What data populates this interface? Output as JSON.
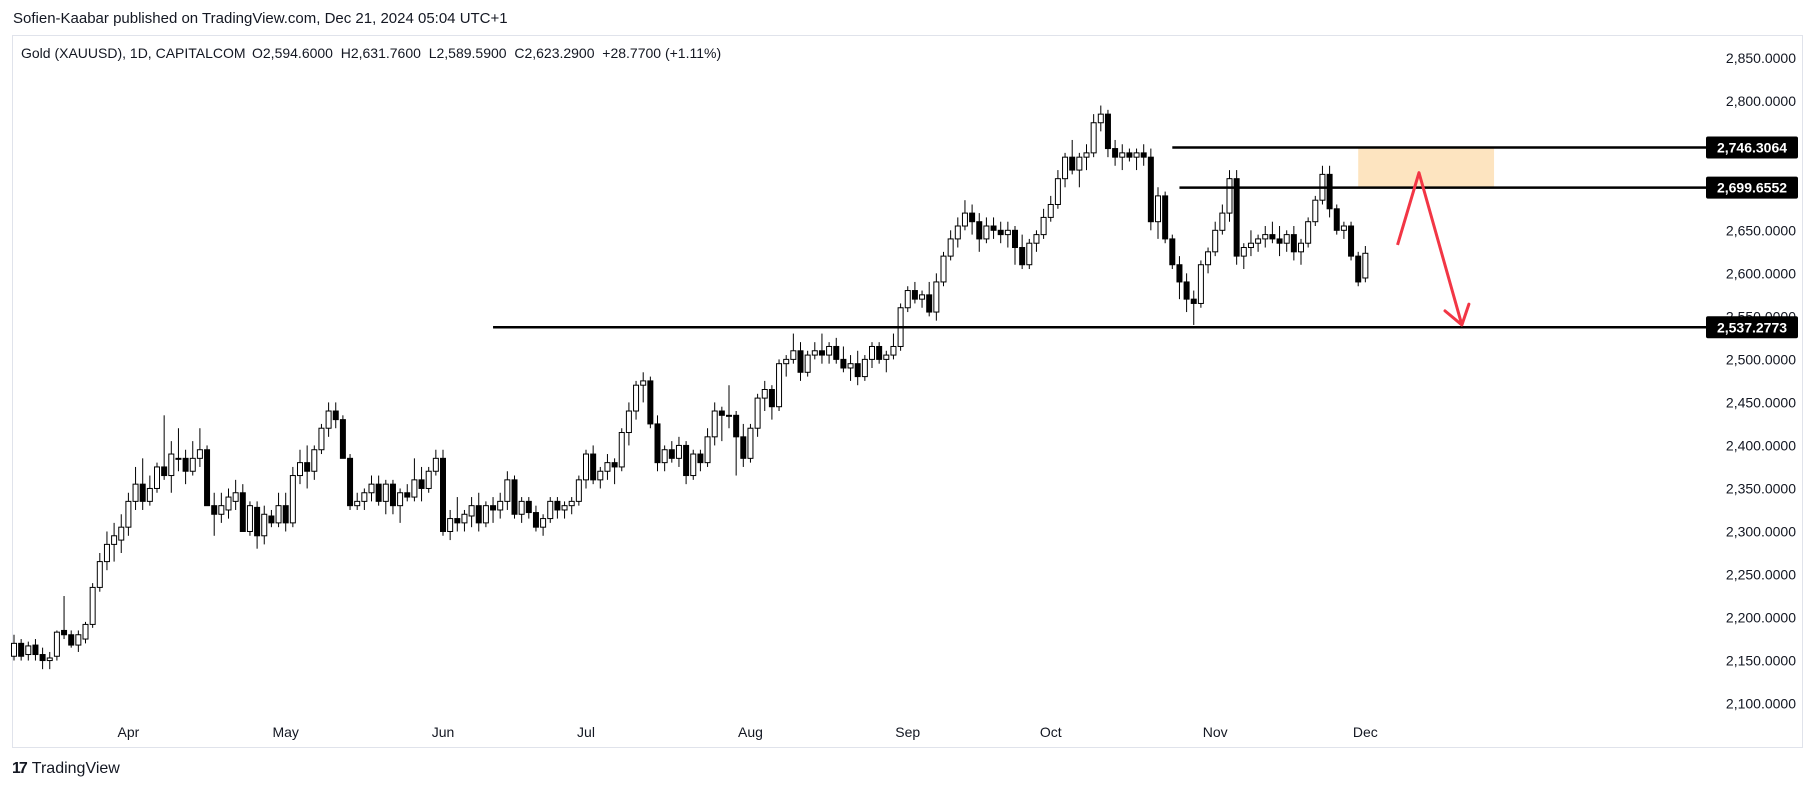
{
  "header": {
    "publisher": "Sofien-Kaabar published on TradingView.com, Dec 21, 2024 05:04 UTC+1"
  },
  "legend": {
    "symbol": "Gold (XAUUSD), 1D, CAPITALCOM",
    "ohlc": "O2,594.6000  H2,631.7600  L2,589.5900  C2,623.2900  +28.7700 (+1.11%)"
  },
  "footer": {
    "brand": "TradingView",
    "logo_glyph": "17"
  },
  "chart_data": {
    "type": "candlestick",
    "title": "Gold (XAUUSD), 1D, CAPITALCOM",
    "ylim": [
      2060,
      2870
    ],
    "y_ticks": [
      2100,
      2150,
      2200,
      2250,
      2300,
      2350,
      2400,
      2450,
      2500,
      2550,
      2600,
      2650,
      2700,
      2750,
      2800,
      2850
    ],
    "y_tick_labels": [
      "2,100.0000",
      "2,150.0000",
      "2,200.0000",
      "2,250.0000",
      "2,300.0000",
      "2,350.0000",
      "2,400.0000",
      "2,450.0000",
      "2,500.0000",
      "2,550.0000",
      "2,600.0000",
      "2,650.0000",
      "2,700.0000",
      "2,750.0000",
      "2,800.0000",
      "2,850.0000"
    ],
    "x_labels": [
      {
        "label": "Apr",
        "index": 16
      },
      {
        "label": "May",
        "index": 38
      },
      {
        "label": "Jun",
        "index": 60
      },
      {
        "label": "Jul",
        "index": 80
      },
      {
        "label": "Aug",
        "index": 103
      },
      {
        "label": "Sep",
        "index": 125
      },
      {
        "label": "Oct",
        "index": 145
      },
      {
        "label": "Nov",
        "index": 168
      },
      {
        "label": "Dec",
        "index": 189
      }
    ],
    "horizontal_lines": [
      {
        "value": 2746.3064,
        "label": "2,746.3064",
        "from_index": 162
      },
      {
        "value": 2699.6552,
        "label": "2,699.6552",
        "from_index": 163
      },
      {
        "value": 2537.2773,
        "label": "2,537.2773",
        "from_index": 67
      }
    ],
    "zone": {
      "from_index": 188,
      "to_index": 207,
      "low": 2700,
      "high": 2747,
      "color": "#fde4c0"
    },
    "arrow_path": [
      [
        193.5,
        2633
      ],
      [
        196.5,
        2717
      ],
      [
        202.5,
        2540
      ]
    ],
    "arrow_color": "#f23645",
    "up_color": "#ffffff",
    "down_color": "#000000",
    "candles": [
      [
        2155,
        2180,
        2150,
        2170
      ],
      [
        2170,
        2175,
        2150,
        2155
      ],
      [
        2157,
        2172,
        2150,
        2167
      ],
      [
        2168,
        2175,
        2150,
        2157
      ],
      [
        2157,
        2165,
        2140,
        2150
      ],
      [
        2150,
        2160,
        2140,
        2153
      ],
      [
        2155,
        2185,
        2150,
        2183
      ],
      [
        2185,
        2225,
        2175,
        2180
      ],
      [
        2180,
        2185,
        2165,
        2168
      ],
      [
        2168,
        2185,
        2160,
        2180
      ],
      [
        2175,
        2195,
        2170,
        2192
      ],
      [
        2192,
        2240,
        2188,
        2235
      ],
      [
        2235,
        2275,
        2230,
        2265
      ],
      [
        2265,
        2300,
        2255,
        2285
      ],
      [
        2285,
        2310,
        2265,
        2295
      ],
      [
        2290,
        2320,
        2275,
        2305
      ],
      [
        2305,
        2345,
        2295,
        2335
      ],
      [
        2335,
        2375,
        2325,
        2355
      ],
      [
        2355,
        2385,
        2325,
        2335
      ],
      [
        2335,
        2365,
        2330,
        2350
      ],
      [
        2350,
        2380,
        2345,
        2375
      ],
      [
        2375,
        2435,
        2360,
        2365
      ],
      [
        2365,
        2405,
        2345,
        2390
      ],
      [
        2385,
        2420,
        2370,
        2385
      ],
      [
        2385,
        2395,
        2355,
        2370
      ],
      [
        2370,
        2405,
        2365,
        2385
      ],
      [
        2385,
        2420,
        2375,
        2395
      ],
      [
        2395,
        2400,
        2330,
        2330
      ],
      [
        2330,
        2345,
        2295,
        2320
      ],
      [
        2320,
        2345,
        2310,
        2330
      ],
      [
        2325,
        2350,
        2315,
        2340
      ],
      [
        2335,
        2360,
        2325,
        2345
      ],
      [
        2345,
        2355,
        2300,
        2300
      ],
      [
        2300,
        2335,
        2295,
        2330
      ],
      [
        2328,
        2335,
        2280,
        2295
      ],
      [
        2295,
        2330,
        2285,
        2320
      ],
      [
        2318,
        2325,
        2305,
        2310
      ],
      [
        2310,
        2345,
        2305,
        2330
      ],
      [
        2330,
        2345,
        2300,
        2310
      ],
      [
        2310,
        2375,
        2305,
        2365
      ],
      [
        2365,
        2395,
        2355,
        2380
      ],
      [
        2380,
        2400,
        2350,
        2370
      ],
      [
        2370,
        2400,
        2360,
        2395
      ],
      [
        2395,
        2425,
        2390,
        2420
      ],
      [
        2420,
        2450,
        2410,
        2440
      ],
      [
        2440,
        2450,
        2420,
        2430
      ],
      [
        2430,
        2435,
        2385,
        2385
      ],
      [
        2385,
        2390,
        2325,
        2330
      ],
      [
        2330,
        2345,
        2325,
        2335
      ],
      [
        2335,
        2350,
        2325,
        2345
      ],
      [
        2345,
        2365,
        2335,
        2355
      ],
      [
        2355,
        2365,
        2330,
        2335
      ],
      [
        2335,
        2360,
        2320,
        2355
      ],
      [
        2355,
        2360,
        2320,
        2330
      ],
      [
        2330,
        2350,
        2310,
        2345
      ],
      [
        2345,
        2355,
        2335,
        2340
      ],
      [
        2340,
        2385,
        2335,
        2360
      ],
      [
        2360,
        2375,
        2335,
        2350
      ],
      [
        2350,
        2375,
        2345,
        2370
      ],
      [
        2370,
        2395,
        2365,
        2385
      ],
      [
        2385,
        2395,
        2295,
        2300
      ],
      [
        2300,
        2325,
        2290,
        2315
      ],
      [
        2315,
        2340,
        2300,
        2310
      ],
      [
        2310,
        2325,
        2300,
        2320
      ],
      [
        2318,
        2340,
        2305,
        2330
      ],
      [
        2330,
        2345,
        2300,
        2310
      ],
      [
        2310,
        2335,
        2305,
        2330
      ],
      [
        2330,
        2340,
        2310,
        2325
      ],
      [
        2325,
        2345,
        2315,
        2335
      ],
      [
        2335,
        2370,
        2325,
        2360
      ],
      [
        2360,
        2365,
        2315,
        2320
      ],
      [
        2320,
        2340,
        2310,
        2335
      ],
      [
        2335,
        2340,
        2315,
        2322
      ],
      [
        2322,
        2330,
        2300,
        2305
      ],
      [
        2305,
        2320,
        2295,
        2315
      ],
      [
        2315,
        2340,
        2310,
        2335
      ],
      [
        2335,
        2340,
        2315,
        2325
      ],
      [
        2325,
        2335,
        2315,
        2330
      ],
      [
        2330,
        2340,
        2320,
        2335
      ],
      [
        2335,
        2365,
        2330,
        2360
      ],
      [
        2360,
        2395,
        2350,
        2390
      ],
      [
        2390,
        2400,
        2355,
        2360
      ],
      [
        2360,
        2375,
        2350,
        2370
      ],
      [
        2370,
        2390,
        2360,
        2380
      ],
      [
        2380,
        2385,
        2355,
        2375
      ],
      [
        2375,
        2420,
        2370,
        2415
      ],
      [
        2415,
        2450,
        2400,
        2440
      ],
      [
        2440,
        2475,
        2430,
        2470
      ],
      [
        2470,
        2485,
        2450,
        2475
      ],
      [
        2475,
        2480,
        2420,
        2425
      ],
      [
        2425,
        2435,
        2370,
        2380
      ],
      [
        2380,
        2400,
        2370,
        2395
      ],
      [
        2395,
        2405,
        2380,
        2385
      ],
      [
        2385,
        2410,
        2375,
        2400
      ],
      [
        2400,
        2405,
        2355,
        2365
      ],
      [
        2365,
        2395,
        2360,
        2390
      ],
      [
        2390,
        2395,
        2370,
        2380
      ],
      [
        2380,
        2420,
        2375,
        2410
      ],
      [
        2410,
        2450,
        2400,
        2440
      ],
      [
        2440,
        2445,
        2405,
        2435
      ],
      [
        2435,
        2470,
        2420,
        2435
      ],
      [
        2435,
        2440,
        2365,
        2410
      ],
      [
        2410,
        2425,
        2375,
        2385
      ],
      [
        2385,
        2425,
        2380,
        2420
      ],
      [
        2420,
        2460,
        2410,
        2455
      ],
      [
        2455,
        2475,
        2440,
        2465
      ],
      [
        2465,
        2470,
        2430,
        2445
      ],
      [
        2445,
        2500,
        2440,
        2495
      ],
      [
        2495,
        2505,
        2480,
        2500
      ],
      [
        2500,
        2530,
        2495,
        2510
      ],
      [
        2510,
        2520,
        2475,
        2485
      ],
      [
        2485,
        2510,
        2480,
        2505
      ],
      [
        2505,
        2520,
        2500,
        2510
      ],
      [
        2510,
        2530,
        2495,
        2505
      ],
      [
        2505,
        2520,
        2495,
        2515
      ],
      [
        2515,
        2525,
        2495,
        2500
      ],
      [
        2500,
        2515,
        2485,
        2490
      ],
      [
        2490,
        2505,
        2475,
        2495
      ],
      [
        2495,
        2510,
        2470,
        2480
      ],
      [
        2480,
        2505,
        2475,
        2500
      ],
      [
        2500,
        2520,
        2490,
        2515
      ],
      [
        2515,
        2520,
        2495,
        2500
      ],
      [
        2500,
        2510,
        2485,
        2505
      ],
      [
        2505,
        2530,
        2500,
        2515
      ],
      [
        2515,
        2565,
        2510,
        2560
      ],
      [
        2560,
        2585,
        2555,
        2580
      ],
      [
        2580,
        2590,
        2565,
        2570
      ],
      [
        2570,
        2580,
        2560,
        2575
      ],
      [
        2575,
        2590,
        2550,
        2555
      ],
      [
        2555,
        2600,
        2545,
        2590
      ],
      [
        2590,
        2625,
        2585,
        2620
      ],
      [
        2620,
        2650,
        2615,
        2640
      ],
      [
        2640,
        2665,
        2630,
        2655
      ],
      [
        2655,
        2685,
        2650,
        2670
      ],
      [
        2670,
        2680,
        2645,
        2660
      ],
      [
        2660,
        2670,
        2625,
        2640
      ],
      [
        2640,
        2665,
        2635,
        2655
      ],
      [
        2655,
        2665,
        2640,
        2650
      ],
      [
        2650,
        2660,
        2635,
        2645
      ],
      [
        2645,
        2660,
        2630,
        2650
      ],
      [
        2650,
        2655,
        2610,
        2630
      ],
      [
        2630,
        2645,
        2605,
        2610
      ],
      [
        2610,
        2640,
        2605,
        2635
      ],
      [
        2635,
        2650,
        2625,
        2645
      ],
      [
        2645,
        2675,
        2640,
        2665
      ],
      [
        2665,
        2690,
        2660,
        2680
      ],
      [
        2680,
        2720,
        2675,
        2710
      ],
      [
        2710,
        2740,
        2700,
        2735
      ],
      [
        2735,
        2755,
        2715,
        2720
      ],
      [
        2720,
        2740,
        2700,
        2735
      ],
      [
        2735,
        2750,
        2720,
        2740
      ],
      [
        2740,
        2785,
        2735,
        2775
      ],
      [
        2775,
        2795,
        2765,
        2785
      ],
      [
        2785,
        2790,
        2735,
        2745
      ],
      [
        2745,
        2755,
        2725,
        2735
      ],
      [
        2735,
        2750,
        2720,
        2740
      ],
      [
        2740,
        2745,
        2730,
        2735
      ],
      [
        2735,
        2745,
        2720,
        2740
      ],
      [
        2740,
        2750,
        2725,
        2735
      ],
      [
        2735,
        2745,
        2650,
        2660
      ],
      [
        2660,
        2700,
        2640,
        2690
      ],
      [
        2690,
        2695,
        2635,
        2640
      ],
      [
        2640,
        2645,
        2605,
        2610
      ],
      [
        2610,
        2620,
        2570,
        2590
      ],
      [
        2590,
        2600,
        2555,
        2570
      ],
      [
        2570,
        2580,
        2540,
        2565
      ],
      [
        2565,
        2615,
        2560,
        2610
      ],
      [
        2610,
        2630,
        2600,
        2625
      ],
      [
        2625,
        2660,
        2620,
        2650
      ],
      [
        2650,
        2680,
        2645,
        2670
      ],
      [
        2670,
        2720,
        2660,
        2710
      ],
      [
        2710,
        2720,
        2610,
        2620
      ],
      [
        2620,
        2635,
        2605,
        2630
      ],
      [
        2630,
        2650,
        2620,
        2635
      ],
      [
        2635,
        2645,
        2625,
        2640
      ],
      [
        2640,
        2655,
        2630,
        2645
      ],
      [
        2645,
        2660,
        2635,
        2640
      ],
      [
        2640,
        2655,
        2620,
        2635
      ],
      [
        2635,
        2650,
        2625,
        2645
      ],
      [
        2645,
        2655,
        2615,
        2625
      ],
      [
        2625,
        2640,
        2610,
        2635
      ],
      [
        2635,
        2665,
        2630,
        2660
      ],
      [
        2660,
        2690,
        2655,
        2685
      ],
      [
        2685,
        2725,
        2680,
        2715
      ],
      [
        2715,
        2725,
        2665,
        2675
      ],
      [
        2675,
        2680,
        2645,
        2650
      ],
      [
        2650,
        2660,
        2640,
        2655
      ],
      [
        2655,
        2660,
        2615,
        2620
      ],
      [
        2620,
        2625,
        2585,
        2590
      ],
      [
        2594.6,
        2631.76,
        2589.59,
        2623.29
      ]
    ]
  }
}
